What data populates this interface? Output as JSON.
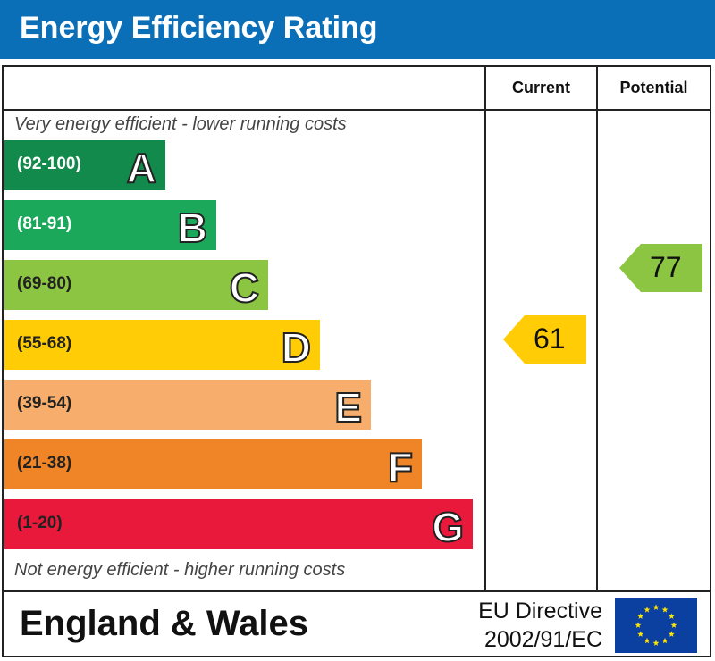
{
  "header": {
    "title": "Energy Efficiency Rating"
  },
  "columns": {
    "current": "Current",
    "potential": "Potential"
  },
  "notes": {
    "top": "Very energy efficient - lower running costs",
    "bottom": "Not energy efficient - higher running costs"
  },
  "bands": [
    {
      "letter": "A",
      "range": "(92-100)",
      "color": "#128a4b",
      "range_color": "#ffffff"
    },
    {
      "letter": "B",
      "range": "(81-91)",
      "color": "#1ba85a",
      "range_color": "#ffffff"
    },
    {
      "letter": "C",
      "range": "(69-80)",
      "color": "#8cc541",
      "range_color": "#222222"
    },
    {
      "letter": "D",
      "range": "(55-68)",
      "color": "#ffcc05",
      "range_color": "#222222"
    },
    {
      "letter": "E",
      "range": "(39-54)",
      "color": "#f7ad6b",
      "range_color": "#222222"
    },
    {
      "letter": "F",
      "range": "(21-38)",
      "color": "#ef8526",
      "range_color": "#222222"
    },
    {
      "letter": "G",
      "range": "(1-20)",
      "color": "#e9193b",
      "range_color": "#222222"
    }
  ],
  "ratings": {
    "current": {
      "value": "61",
      "color": "#ffcc05"
    },
    "potential": {
      "value": "77",
      "color": "#8cc541"
    }
  },
  "footer": {
    "region": "England & Wales",
    "directive_line1": "EU Directive",
    "directive_line2": "2002/91/EC"
  },
  "colors": {
    "header": "#0b6fb8",
    "eu_flag": "#0b3fa0",
    "eu_stars": "#ffe600"
  }
}
